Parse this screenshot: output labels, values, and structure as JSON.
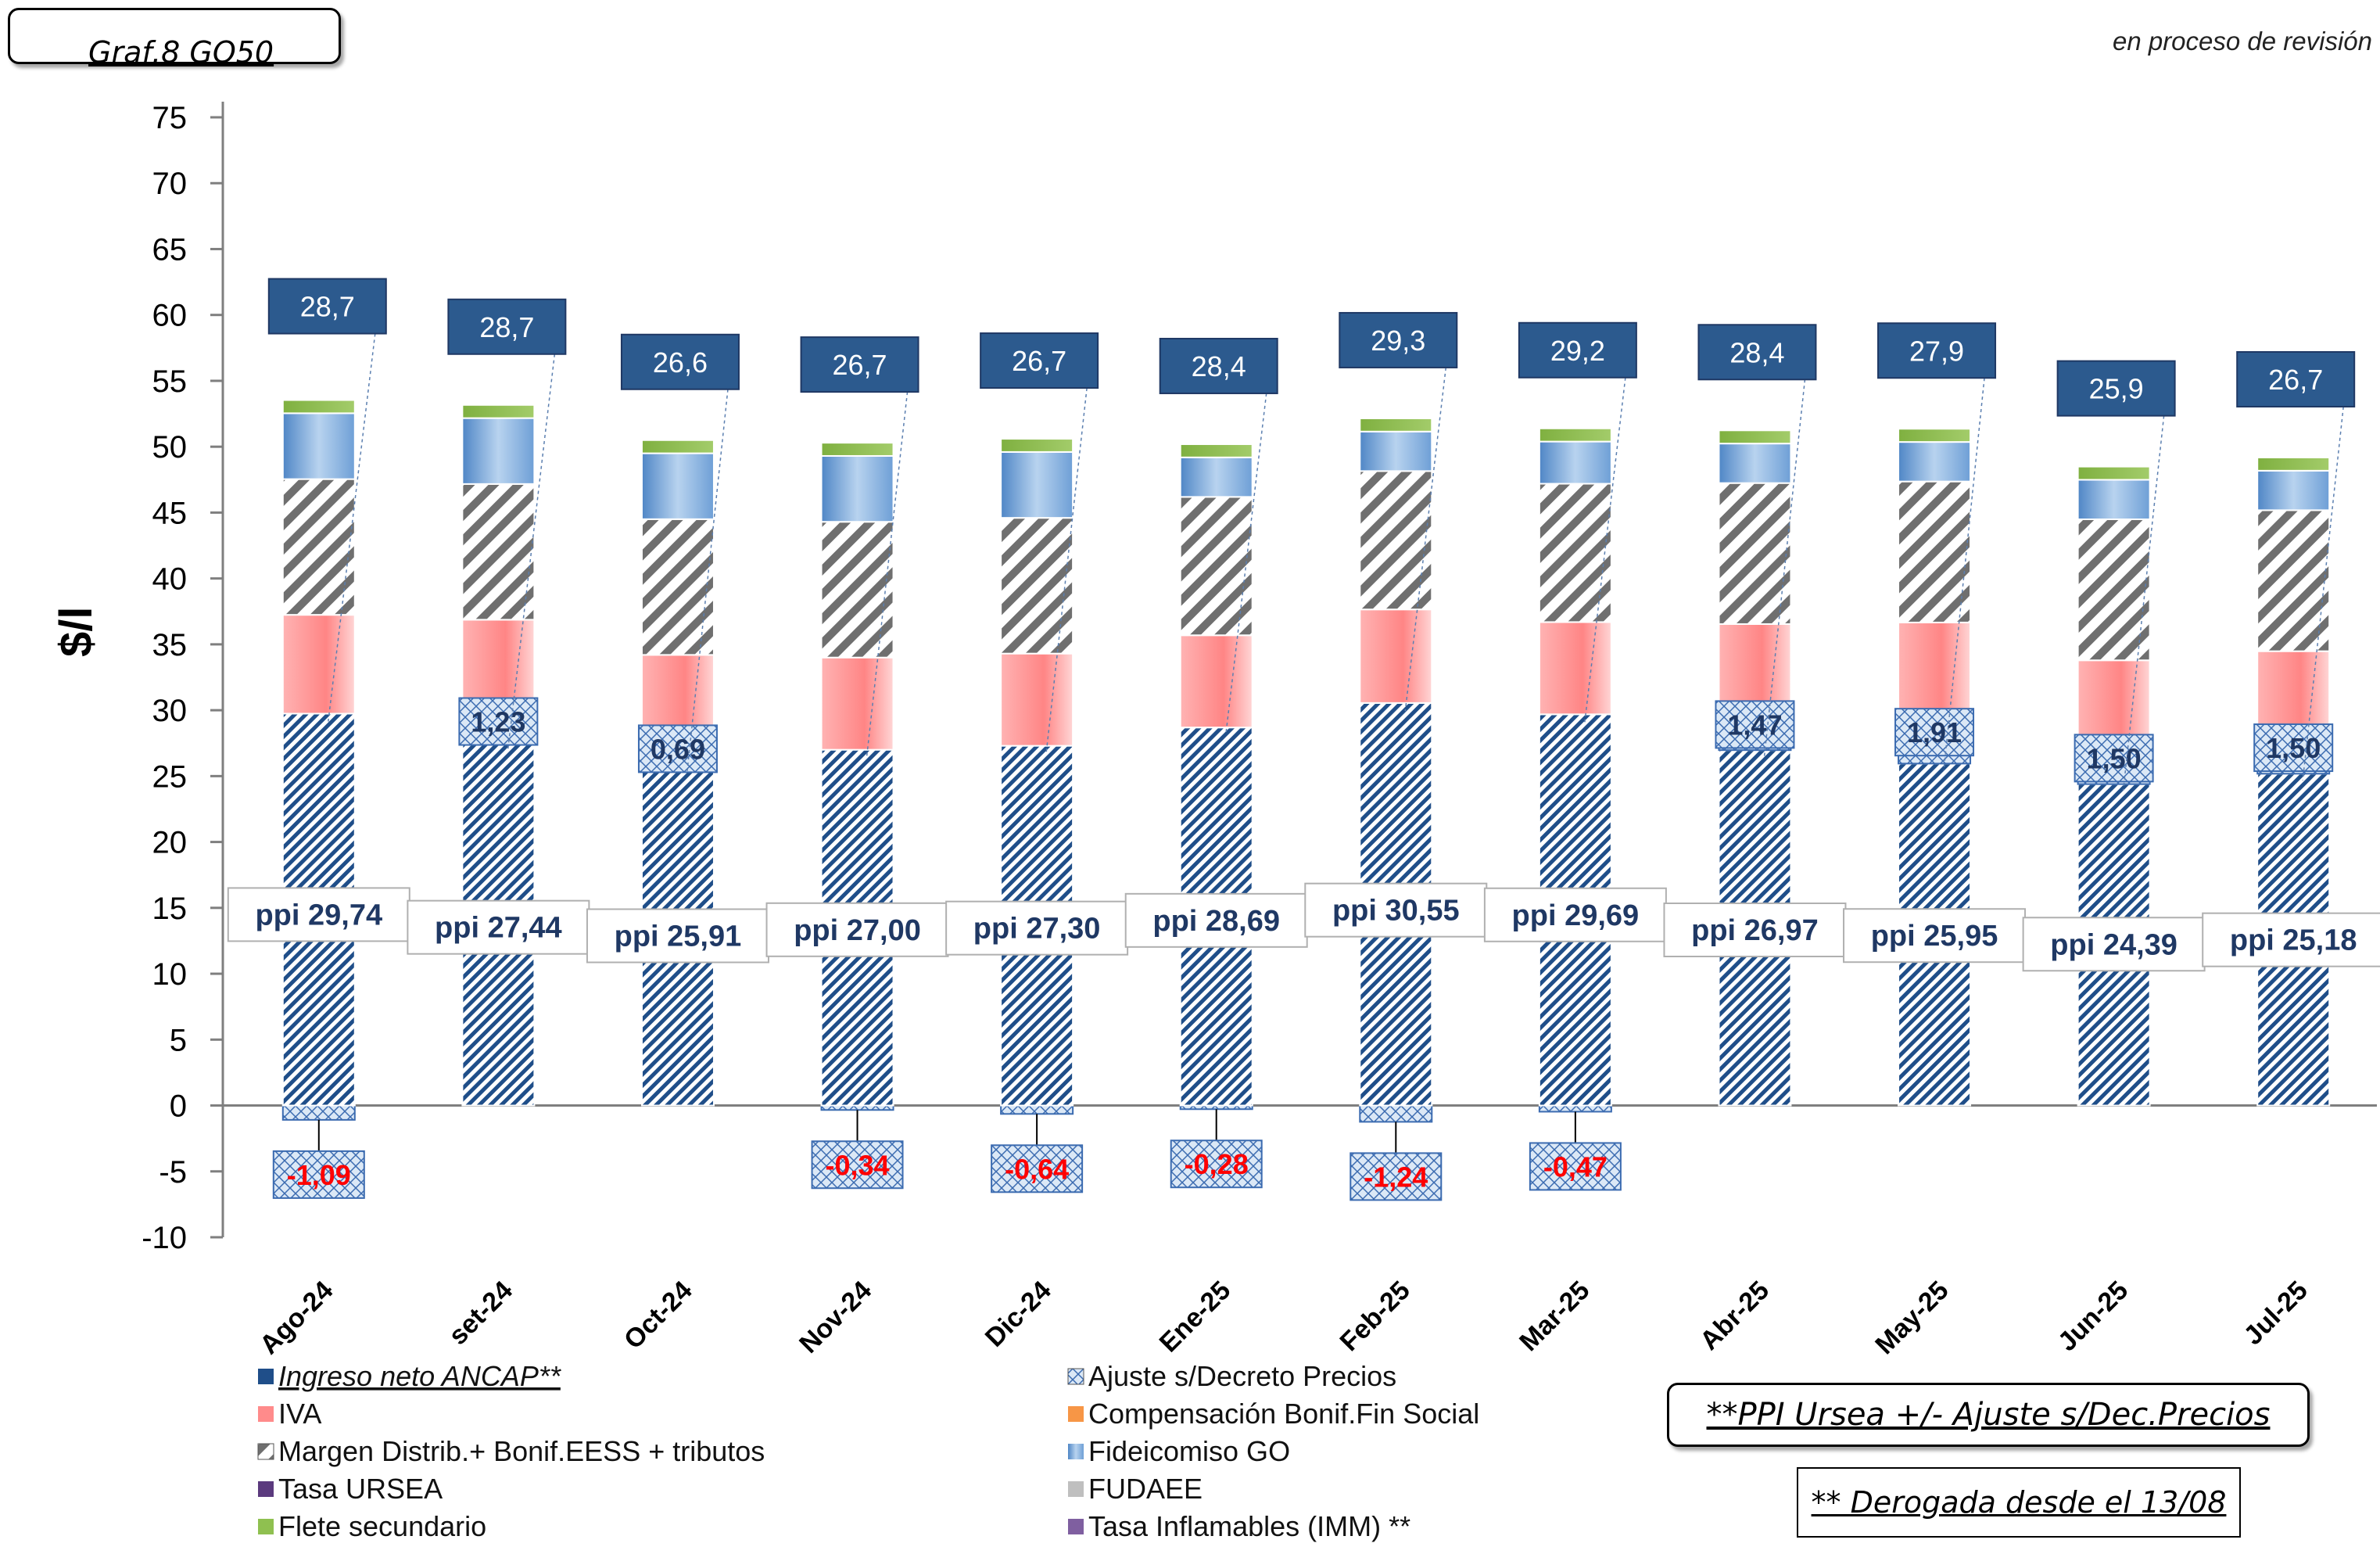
{
  "header": {
    "chart_title": "Graf.8  GO50",
    "status": "en proceso de revisión"
  },
  "notes": {
    "ppi_formula": "**PPI Ursea +/- Ajuste s/Dec.Precios",
    "derogated": "** Derogada desde el 13/08"
  },
  "colors": {
    "ingreso": "#1f4e89",
    "iva": "#ff8b8b",
    "margen": "#7f7f7f",
    "fideicomiso": "#6ea0d6",
    "flete": "#8fc050",
    "ajuste": "#3b6bb0",
    "label_box": "#2c5a8e",
    "negative_text": "#ff0000",
    "compensacion": "#f79646",
    "tasa_ursea": "#5b3a7e",
    "fudaee": "#bfbfbf",
    "tasa_inflamables": "#7f5fa0"
  },
  "chart_data": {
    "type": "bar",
    "stacked": true,
    "ylabel": "$/l",
    "ylim": [
      -10,
      75
    ],
    "yticks": [
      75,
      70,
      65,
      60,
      55,
      50,
      45,
      40,
      35,
      30,
      25,
      20,
      15,
      10,
      5,
      0,
      -5,
      -10
    ],
    "categories": [
      "Ago-24",
      "set-24",
      "Oct-24",
      "Nov-24",
      "Dic-24",
      "Ene-25",
      "Feb-25",
      "Mar-25",
      "Abr-25",
      "May-25",
      "Jun-25",
      "Jul-25"
    ],
    "series": [
      {
        "name": "Ingreso neto ANCAP**",
        "values": [
          29.74,
          27.44,
          25.91,
          27.0,
          27.3,
          28.69,
          30.55,
          29.69,
          26.97,
          25.95,
          24.39,
          25.18
        ]
      },
      {
        "name": "Ajuste s/Decreto Precios",
        "values": [
          -1.09,
          1.23,
          0.69,
          -0.34,
          -0.64,
          -0.28,
          -1.24,
          -0.47,
          1.47,
          1.91,
          1.5,
          1.5
        ]
      },
      {
        "name": "IVA",
        "values": [
          7.5,
          8.2,
          7.6,
          7.0,
          7.0,
          7.0,
          7.1,
          7.0,
          8.1,
          8.8,
          7.9,
          7.8
        ]
      },
      {
        "name": "Compensación Bonif.Fin Social",
        "values": [
          0,
          0,
          0,
          0,
          0,
          0,
          0,
          0,
          0,
          0,
          0,
          0
        ]
      },
      {
        "name": "Margen Distrib.+ Bonif.EESS + tributos",
        "values": [
          10.3,
          10.3,
          10.3,
          10.3,
          10.3,
          10.5,
          10.5,
          10.5,
          10.7,
          10.7,
          10.7,
          10.7
        ]
      },
      {
        "name": "Fideicomiso GO",
        "values": [
          5.0,
          5.0,
          5.0,
          5.0,
          5.0,
          3.0,
          3.0,
          3.2,
          3.0,
          3.0,
          3.0,
          3.0
        ]
      },
      {
        "name": "Tasa URSEA",
        "values": [
          0,
          0,
          0,
          0,
          0,
          0,
          0,
          0,
          0,
          0,
          0,
          0
        ]
      },
      {
        "name": "FUDAEE",
        "values": [
          0,
          0,
          0,
          0,
          0,
          0,
          0,
          0,
          0,
          0,
          0,
          0
        ]
      },
      {
        "name": "Flete secundario",
        "values": [
          1.0,
          1.0,
          1.0,
          1.0,
          1.0,
          1.0,
          1.0,
          1.0,
          1.0,
          1.0,
          1.0,
          1.0
        ]
      },
      {
        "name": "Tasa Inflamables (IMM) **",
        "values": [
          0,
          0,
          0,
          0,
          0,
          0,
          0,
          0,
          0,
          0,
          0,
          0
        ]
      }
    ],
    "ppi_labels": [
      "ppi 29,74",
      "ppi 27,44",
      "ppi 25,91",
      "ppi 27,00",
      "ppi 27,30",
      "ppi 28,69",
      "ppi 30,55",
      "ppi 29,69",
      "ppi 26,97",
      "ppi 25,95",
      "ppi 24,39",
      "ppi 25,18"
    ],
    "ajuste_labels": [
      "-1,09",
      "1,23",
      "0,69",
      "-0,34",
      "-0,64",
      "-0,28",
      "-1,24",
      "-0,47",
      "1,47",
      "1,91",
      "1,50",
      "1,50"
    ],
    "top_labels": [
      "28,7",
      "28,7",
      "26,6",
      "26,7",
      "26,7",
      "28,4",
      "29,3",
      "29,2",
      "28,4",
      "27,9",
      "25,9",
      "26,7"
    ],
    "legend": {
      "left": [
        {
          "label": "Ingreso neto ANCAP**",
          "key": "ingreso"
        },
        {
          "label": "IVA",
          "key": "iva"
        },
        {
          "label": "Margen Distrib.+ Bonif.EESS + tributos",
          "key": "margen"
        },
        {
          "label": "Tasa URSEA",
          "key": "tasa_ursea"
        },
        {
          "label": "Flete secundario",
          "key": "flete"
        }
      ],
      "right": [
        {
          "label": "Ajuste s/Decreto Precios",
          "key": "ajuste"
        },
        {
          "label": "Compensación Bonif.Fin Social",
          "key": "compensacion"
        },
        {
          "label": "Fideicomiso GO",
          "key": "fideicomiso"
        },
        {
          "label": "FUDAEE",
          "key": "fudaee"
        },
        {
          "label": "Tasa Inflamables (IMM) **",
          "key": "tasa_inflamables"
        }
      ]
    }
  }
}
